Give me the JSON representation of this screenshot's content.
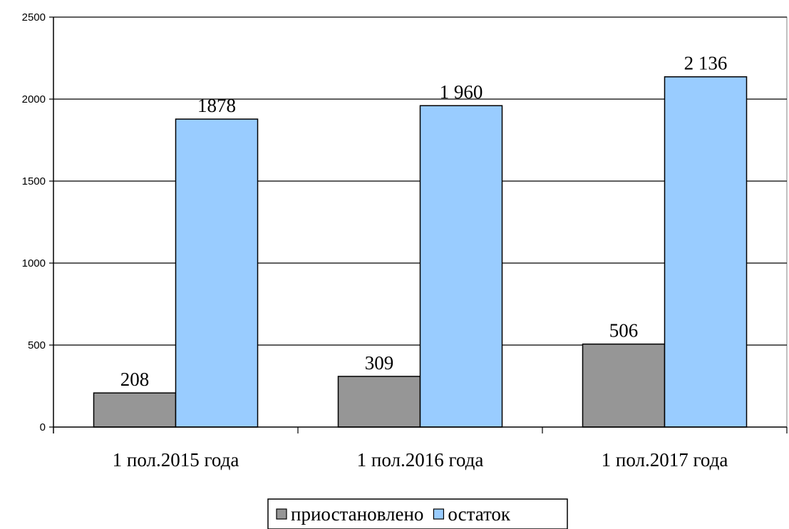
{
  "chart_data": {
    "type": "bar",
    "title": "",
    "xlabel": "",
    "ylabel": "",
    "categories": [
      "1 пол.2015 года",
      "1 пол.2016 года",
      "1 пол.2017 года"
    ],
    "series": [
      {
        "name": "приостановлено",
        "values": [
          208,
          309,
          506
        ],
        "labels": [
          "208",
          "309",
          "506"
        ],
        "color": "#969696"
      },
      {
        "name": "остаток",
        "values": [
          1878,
          1960,
          2136
        ],
        "labels": [
          "1878",
          "1 960",
          "2 136"
        ],
        "color": "#99ccff"
      }
    ],
    "ylim": [
      0,
      2500
    ],
    "yticks": [
      0,
      500,
      1000,
      1500,
      2000,
      2500
    ],
    "grid": true,
    "legend_position": "bottom"
  }
}
